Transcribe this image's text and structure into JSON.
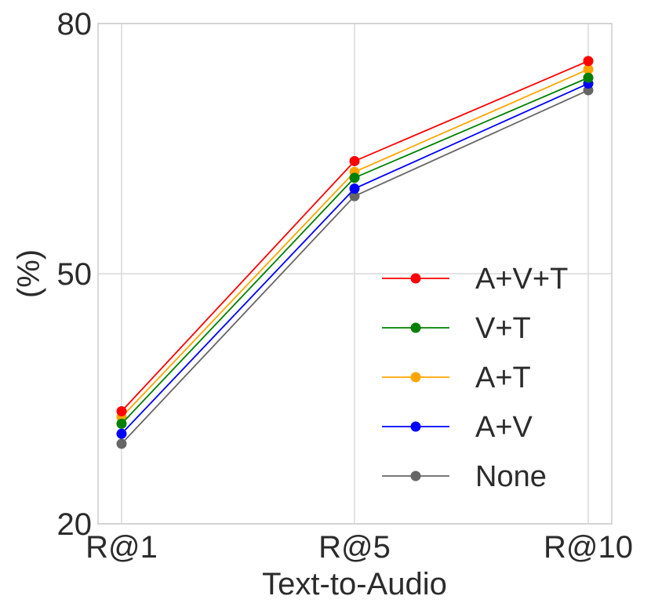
{
  "chart_data": {
    "type": "line",
    "title": "",
    "xlabel": "Text-to-Audio",
    "ylabel": "(%)",
    "categories": [
      "R@1",
      "R@5",
      "R@10"
    ],
    "ylim": [
      20,
      80
    ],
    "yticks": [
      20,
      50,
      80
    ],
    "grid": true,
    "legend_position": "center-right",
    "series": [
      {
        "name": "A+V+T",
        "color": "#ff0000",
        "values": [
          33.5,
          63.5,
          75.5
        ]
      },
      {
        "name": "V+T",
        "color": "#008000",
        "values": [
          32.0,
          61.5,
          73.5
        ]
      },
      {
        "name": "A+T",
        "color": "#ffa500",
        "values": [
          32.8,
          62.2,
          74.5
        ]
      },
      {
        "name": "A+V",
        "color": "#0000ff",
        "values": [
          30.8,
          60.2,
          72.8
        ]
      },
      {
        "name": "None",
        "color": "#666666",
        "values": [
          29.6,
          59.3,
          72.0
        ]
      }
    ]
  }
}
